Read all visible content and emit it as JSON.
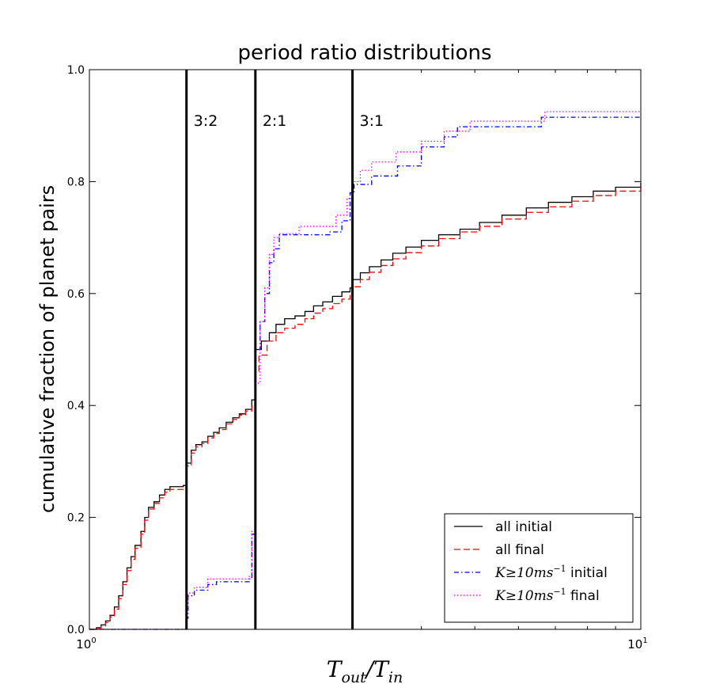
{
  "chart_data": {
    "type": "line",
    "title": "period ratio distributions",
    "xlabel": "T_out/T_in",
    "ylabel": "cumulative fraction of planet pairs",
    "xscale": "log",
    "xlim": [
      1,
      10
    ],
    "ylim": [
      0,
      1
    ],
    "x_ticks": [
      {
        "value": 1,
        "label": "10",
        "exp": "0"
      },
      {
        "value": 10,
        "label": "10",
        "exp": "1"
      }
    ],
    "y_ticks": [
      {
        "value": 0.0,
        "label": "0.0"
      },
      {
        "value": 0.2,
        "label": "0.2"
      },
      {
        "value": 0.4,
        "label": "0.4"
      },
      {
        "value": 0.6,
        "label": "0.6"
      },
      {
        "value": 0.8,
        "label": "0.8"
      },
      {
        "value": 1.0,
        "label": "1.0"
      }
    ],
    "resonances": [
      {
        "value": 1.5,
        "label": "3:2"
      },
      {
        "value": 2.0,
        "label": "2:1"
      },
      {
        "value": 3.0,
        "label": "3:1"
      }
    ],
    "legend": {
      "placement": "lower-right",
      "entries": [
        {
          "series": 0,
          "label": "all initial"
        },
        {
          "series": 1,
          "label": "all final"
        },
        {
          "series": 2,
          "math": "K≥10ms",
          "sup": "−1",
          "label": "initial"
        },
        {
          "series": 3,
          "math": "K≥10ms",
          "sup": "−1",
          "label": "final"
        }
      ]
    },
    "series": [
      {
        "name": "all initial",
        "color": "#000000",
        "dash": "solid",
        "points": [
          [
            1.0,
            0.0
          ],
          [
            1.03,
            0.003
          ],
          [
            1.05,
            0.008
          ],
          [
            1.07,
            0.015
          ],
          [
            1.09,
            0.025
          ],
          [
            1.11,
            0.04
          ],
          [
            1.13,
            0.06
          ],
          [
            1.15,
            0.085
          ],
          [
            1.17,
            0.11
          ],
          [
            1.19,
            0.13
          ],
          [
            1.21,
            0.15
          ],
          [
            1.24,
            0.175
          ],
          [
            1.26,
            0.2
          ],
          [
            1.28,
            0.218
          ],
          [
            1.31,
            0.228
          ],
          [
            1.34,
            0.24
          ],
          [
            1.37,
            0.25
          ],
          [
            1.4,
            0.255
          ],
          [
            1.48,
            0.257
          ],
          [
            1.5,
            0.297
          ],
          [
            1.53,
            0.32
          ],
          [
            1.56,
            0.33
          ],
          [
            1.6,
            0.335
          ],
          [
            1.64,
            0.345
          ],
          [
            1.68,
            0.352
          ],
          [
            1.72,
            0.36
          ],
          [
            1.77,
            0.37
          ],
          [
            1.82,
            0.378
          ],
          [
            1.87,
            0.385
          ],
          [
            1.92,
            0.393
          ],
          [
            1.97,
            0.41
          ],
          [
            2.0,
            0.5
          ],
          [
            2.05,
            0.515
          ],
          [
            2.12,
            0.53
          ],
          [
            2.18,
            0.545
          ],
          [
            2.26,
            0.555
          ],
          [
            2.36,
            0.56
          ],
          [
            2.46,
            0.568
          ],
          [
            2.55,
            0.578
          ],
          [
            2.65,
            0.585
          ],
          [
            2.76,
            0.595
          ],
          [
            2.87,
            0.603
          ],
          [
            2.97,
            0.61
          ],
          [
            3.0,
            0.625
          ],
          [
            3.1,
            0.637
          ],
          [
            3.22,
            0.648
          ],
          [
            3.38,
            0.66
          ],
          [
            3.55,
            0.672
          ],
          [
            3.75,
            0.683
          ],
          [
            4.0,
            0.695
          ],
          [
            4.3,
            0.705
          ],
          [
            4.7,
            0.715
          ],
          [
            5.1,
            0.727
          ],
          [
            5.6,
            0.74
          ],
          [
            6.2,
            0.753
          ],
          [
            6.8,
            0.763
          ],
          [
            7.5,
            0.773
          ],
          [
            8.2,
            0.783
          ],
          [
            9.0,
            0.79
          ],
          [
            10.0,
            0.798
          ]
        ]
      },
      {
        "name": "all final",
        "color": "#ff0000",
        "dash": "dashed",
        "points": [
          [
            1.0,
            0.0
          ],
          [
            1.03,
            0.002
          ],
          [
            1.05,
            0.006
          ],
          [
            1.07,
            0.012
          ],
          [
            1.09,
            0.022
          ],
          [
            1.11,
            0.036
          ],
          [
            1.13,
            0.055
          ],
          [
            1.15,
            0.08
          ],
          [
            1.17,
            0.105
          ],
          [
            1.19,
            0.125
          ],
          [
            1.21,
            0.145
          ],
          [
            1.24,
            0.17
          ],
          [
            1.26,
            0.195
          ],
          [
            1.28,
            0.215
          ],
          [
            1.31,
            0.225
          ],
          [
            1.34,
            0.235
          ],
          [
            1.37,
            0.245
          ],
          [
            1.4,
            0.25
          ],
          [
            1.48,
            0.253
          ],
          [
            1.5,
            0.292
          ],
          [
            1.53,
            0.315
          ],
          [
            1.56,
            0.326
          ],
          [
            1.6,
            0.332
          ],
          [
            1.64,
            0.342
          ],
          [
            1.68,
            0.35
          ],
          [
            1.72,
            0.357
          ],
          [
            1.77,
            0.367
          ],
          [
            1.82,
            0.375
          ],
          [
            1.87,
            0.383
          ],
          [
            1.92,
            0.39
          ],
          [
            1.97,
            0.4
          ],
          [
            2.0,
            0.46
          ],
          [
            2.03,
            0.49
          ],
          [
            2.1,
            0.515
          ],
          [
            2.18,
            0.53
          ],
          [
            2.26,
            0.538
          ],
          [
            2.36,
            0.545
          ],
          [
            2.46,
            0.555
          ],
          [
            2.55,
            0.565
          ],
          [
            2.65,
            0.573
          ],
          [
            2.76,
            0.582
          ],
          [
            2.87,
            0.59
          ],
          [
            2.97,
            0.598
          ],
          [
            3.0,
            0.612
          ],
          [
            3.1,
            0.625
          ],
          [
            3.22,
            0.638
          ],
          [
            3.38,
            0.65
          ],
          [
            3.55,
            0.662
          ],
          [
            3.75,
            0.673
          ],
          [
            4.0,
            0.685
          ],
          [
            4.3,
            0.698
          ],
          [
            4.7,
            0.71
          ],
          [
            5.1,
            0.72
          ],
          [
            5.6,
            0.733
          ],
          [
            6.2,
            0.745
          ],
          [
            6.8,
            0.755
          ],
          [
            7.5,
            0.765
          ],
          [
            8.2,
            0.775
          ],
          [
            9.0,
            0.783
          ],
          [
            10.0,
            0.79
          ]
        ]
      },
      {
        "name": "K>=10ms^-1 initial",
        "color": "#0000ff",
        "dash": "dashdot",
        "points": [
          [
            1.0,
            0.0
          ],
          [
            1.48,
            0.0
          ],
          [
            1.5,
            0.02
          ],
          [
            1.51,
            0.06
          ],
          [
            1.55,
            0.07
          ],
          [
            1.64,
            0.08
          ],
          [
            1.7,
            0.085
          ],
          [
            1.95,
            0.09
          ],
          [
            1.97,
            0.17
          ],
          [
            2.0,
            0.5
          ],
          [
            2.04,
            0.55
          ],
          [
            2.08,
            0.6
          ],
          [
            2.12,
            0.655
          ],
          [
            2.16,
            0.68
          ],
          [
            2.21,
            0.705
          ],
          [
            2.73,
            0.71
          ],
          [
            2.87,
            0.73
          ],
          [
            2.97,
            0.78
          ],
          [
            3.02,
            0.795
          ],
          [
            3.25,
            0.81
          ],
          [
            3.62,
            0.828
          ],
          [
            4.0,
            0.862
          ],
          [
            4.4,
            0.88
          ],
          [
            4.65,
            0.898
          ],
          [
            6.6,
            0.915
          ],
          [
            10.0,
            0.915
          ]
        ]
      },
      {
        "name": "K>=10ms^-1 final",
        "color": "#ff00ff",
        "dash": "dotted",
        "points": [
          [
            1.0,
            0.0
          ],
          [
            1.48,
            0.0
          ],
          [
            1.5,
            0.025
          ],
          [
            1.51,
            0.065
          ],
          [
            1.55,
            0.075
          ],
          [
            1.64,
            0.09
          ],
          [
            1.95,
            0.095
          ],
          [
            1.97,
            0.175
          ],
          [
            2.0,
            0.44
          ],
          [
            2.04,
            0.55
          ],
          [
            2.08,
            0.61
          ],
          [
            2.12,
            0.67
          ],
          [
            2.16,
            0.7
          ],
          [
            2.21,
            0.707
          ],
          [
            2.4,
            0.72
          ],
          [
            2.8,
            0.74
          ],
          [
            2.93,
            0.77
          ],
          [
            3.0,
            0.8
          ],
          [
            3.1,
            0.82
          ],
          [
            3.25,
            0.835
          ],
          [
            3.6,
            0.853
          ],
          [
            4.0,
            0.872
          ],
          [
            4.4,
            0.89
          ],
          [
            4.9,
            0.908
          ],
          [
            6.7,
            0.925
          ],
          [
            10.0,
            0.925
          ]
        ]
      }
    ]
  }
}
